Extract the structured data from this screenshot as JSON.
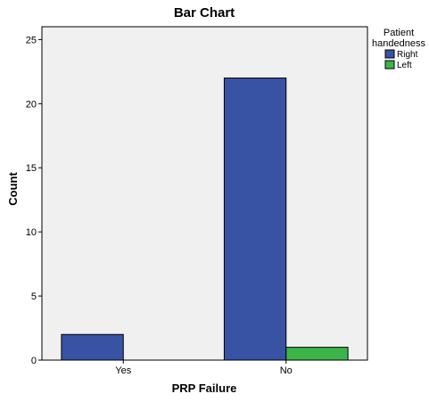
{
  "chart_data": {
    "type": "bar",
    "title": "Bar Chart",
    "xlabel": "PRP Failure",
    "ylabel": "Count",
    "categories": [
      "Yes",
      "No"
    ],
    "series": [
      {
        "name": "Right",
        "values": [
          2,
          22
        ],
        "color": "#3953a4"
      },
      {
        "name": "Left",
        "values": [
          0,
          1
        ],
        "color": "#3cb44a"
      }
    ],
    "ylim": [
      0,
      26
    ],
    "yticks": [
      0,
      5,
      10,
      15,
      20,
      25
    ],
    "legend": {
      "title_lines": [
        "Patient",
        "handedness"
      ],
      "placement": "right"
    },
    "grid": false,
    "plot_background": "#f0f0f0"
  }
}
